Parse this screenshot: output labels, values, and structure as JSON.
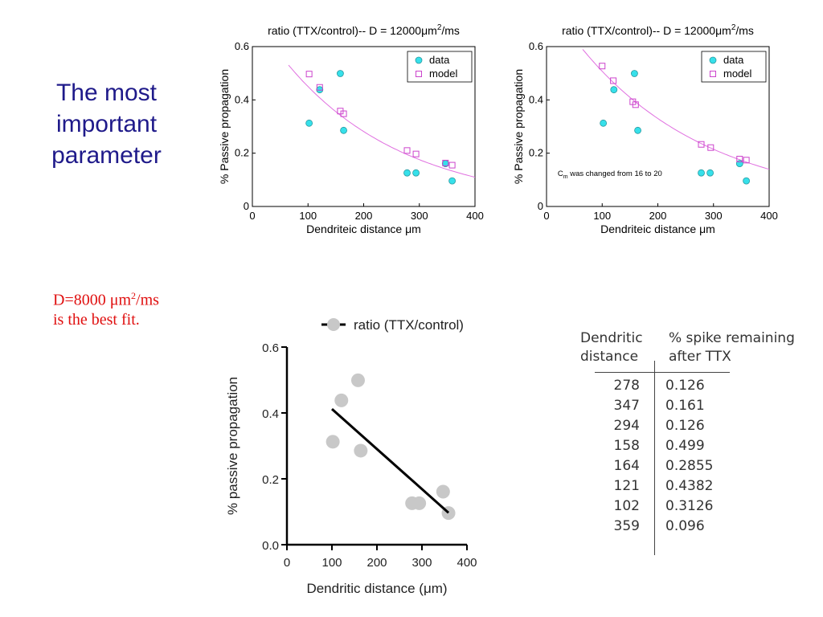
{
  "slide": {
    "title": "The most important parameter",
    "note_prefix": "D=8000 ",
    "note_unit_base": "μm",
    "note_unit_exp": "2",
    "note_unit_tail": "/ms",
    "note_line2": "is the best fit."
  },
  "colors": {
    "title": "#1f1a8a",
    "note": "#e01010",
    "data_marker": "#36e0ea",
    "model_marker": "#cc44cc",
    "model_curve": "#e070e0",
    "fit_points": "#c8c8c8",
    "fit_line": "#000000"
  },
  "chart_data": [
    {
      "type": "scatter",
      "title_main": "ratio (TTX/control)-- D = 12000",
      "title_unit": "μm",
      "title_exp": "2",
      "title_tail": "/ms",
      "xlabel": "Dendriteic distance μm",
      "ylabel": "% Passive propagation",
      "xlim": [
        0,
        400
      ],
      "ylim": [
        0,
        0.6
      ],
      "xticks": [
        "0",
        "100",
        "200",
        "300",
        "400"
      ],
      "yticks": [
        "0",
        "0.2",
        "0.4",
        "0.6"
      ],
      "legend_position": "top-right",
      "annotation_main": "",
      "annotation_sub": "",
      "annotation_tail": "",
      "series": [
        {
          "name": "data",
          "marker": "circle",
          "points": [
            [
              102,
              0.3126
            ],
            [
              121,
              0.4382
            ],
            [
              158,
              0.499
            ],
            [
              164,
              0.2855
            ],
            [
              278,
              0.126
            ],
            [
              294,
              0.126
            ],
            [
              347,
              0.161
            ],
            [
              359,
              0.096
            ]
          ]
        },
        {
          "name": "model",
          "marker": "square",
          "points": [
            [
              102,
              0.497
            ],
            [
              121,
              0.447
            ],
            [
              158,
              0.358
            ],
            [
              164,
              0.348
            ],
            [
              278,
              0.21
            ],
            [
              294,
              0.197
            ],
            [
              347,
              0.163
            ],
            [
              359,
              0.155
            ]
          ]
        }
      ],
      "curve": {
        "a": 0.72,
        "b": 0.0047
      }
    },
    {
      "type": "scatter",
      "title_main": "ratio (TTX/control)-- D = 12000",
      "title_unit": "μm",
      "title_exp": "2",
      "title_tail": "/ms",
      "xlabel": "Dendriteic distance μm",
      "ylabel": "% Passive propagation",
      "xlim": [
        0,
        400
      ],
      "ylim": [
        0,
        0.6
      ],
      "xticks": [
        "0",
        "100",
        "200",
        "300",
        "400"
      ],
      "yticks": [
        "0",
        "0.2",
        "0.4",
        "0.6"
      ],
      "legend_position": "top-right",
      "annotation_main": "C",
      "annotation_sub": "m",
      "annotation_tail": " was changed from 16 to 20",
      "series": [
        {
          "name": "data",
          "marker": "circle",
          "points": [
            [
              102,
              0.3126
            ],
            [
              121,
              0.4382
            ],
            [
              158,
              0.499
            ],
            [
              164,
              0.2855
            ],
            [
              278,
              0.126
            ],
            [
              294,
              0.126
            ],
            [
              347,
              0.161
            ],
            [
              359,
              0.096
            ]
          ]
        },
        {
          "name": "model",
          "marker": "square",
          "points": [
            [
              100,
              0.527
            ],
            [
              120,
              0.472
            ],
            [
              155,
              0.393
            ],
            [
              160,
              0.382
            ],
            [
              278,
              0.233
            ],
            [
              295,
              0.221
            ],
            [
              347,
              0.178
            ],
            [
              359,
              0.174
            ]
          ]
        }
      ],
      "curve": {
        "a": 0.78,
        "b": 0.0043
      }
    },
    {
      "type": "scatter",
      "legend_label": "ratio (TTX/control)",
      "xlabel": "Dendritic distance (μm)",
      "ylabel": "% passive propagation",
      "xlim": [
        0,
        400
      ],
      "ylim": [
        0,
        0.6
      ],
      "xticks": [
        "0",
        "100",
        "200",
        "300",
        "400"
      ],
      "yticks": [
        "0.0",
        "0.2",
        "0.4",
        "0.6"
      ],
      "points": [
        [
          102,
          0.3126
        ],
        [
          121,
          0.4382
        ],
        [
          158,
          0.499
        ],
        [
          164,
          0.2855
        ],
        [
          278,
          0.126
        ],
        [
          294,
          0.126
        ],
        [
          347,
          0.161
        ],
        [
          359,
          0.096
        ]
      ],
      "fit_line": [
        [
          100,
          0.412
        ],
        [
          359,
          0.097
        ]
      ]
    }
  ],
  "table": {
    "header_col1": "Dendritic distance",
    "header_col2": "% spike remaining after TTX",
    "rows": [
      [
        "278",
        "0.126"
      ],
      [
        "347",
        "0.161"
      ],
      [
        "294",
        "0.126"
      ],
      [
        "158",
        "0.499"
      ],
      [
        "164",
        "0.2855"
      ],
      [
        "121",
        "0.4382"
      ],
      [
        "102",
        "0.3126"
      ],
      [
        "359",
        "0.096"
      ]
    ]
  }
}
